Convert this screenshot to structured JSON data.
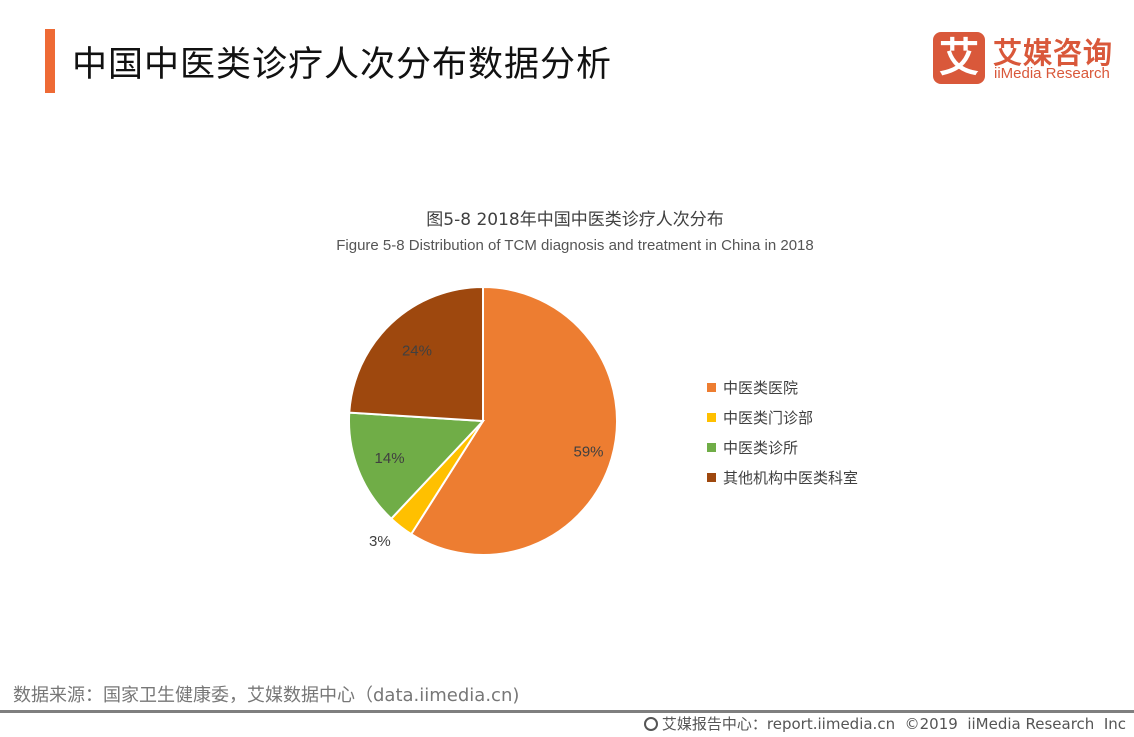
{
  "header": {
    "title": "中国中医类诊疗人次分布数据分析",
    "accent_color": "#ee6a35"
  },
  "logo": {
    "glyph": "艾",
    "name_cn": "艾媒咨询",
    "name_en": "iiMedia Research",
    "color": "#d9583a"
  },
  "chart_data": {
    "type": "pie",
    "title": "图5-8 2018年中国中医类诊疗人次分布",
    "subtitle": "Figure 5-8 Distribution of TCM diagnosis and treatment in China in 2018",
    "categories": [
      "中医类医院",
      "中医类门诊部",
      "中医类诊所",
      "其他机构中医类科室"
    ],
    "values": [
      59,
      3,
      14,
      24
    ],
    "labels": [
      "59%",
      "3%",
      "14%",
      "24%"
    ],
    "colors": [
      "#ed7d31",
      "#ffc000",
      "#70ad47",
      "#9e480e"
    ],
    "start_angle": "12 o'clock, clockwise",
    "legend_position": "right"
  },
  "legend": {
    "items": [
      {
        "label": "中医类医院",
        "color": "#ed7d31"
      },
      {
        "label": "中医类门诊部",
        "color": "#ffc000"
      },
      {
        "label": "中医类诊所",
        "color": "#70ad47"
      },
      {
        "label": "其他机构中医类科室",
        "color": "#9e480e"
      }
    ]
  },
  "source": {
    "text": "数据来源：国家卫生健康委，艾媒数据中心（data.iimedia.cn)"
  },
  "footer": {
    "text": "艾媒报告中心：report.iimedia.cn  ©2019  iiMedia Research  Inc"
  }
}
